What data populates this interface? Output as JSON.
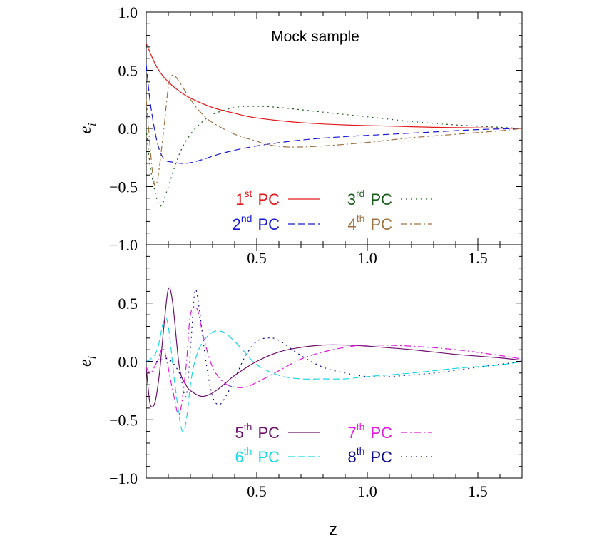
{
  "chart_data": [
    {
      "type": "line",
      "panel": "top",
      "annotation": "Mock sample",
      "xlabel": "",
      "ylabel": "e_i",
      "xlim": [
        0.0,
        1.7
      ],
      "ylim": [
        -1.0,
        1.0
      ],
      "xticks": [
        "0.5",
        "1.0",
        "1.5"
      ],
      "xtick_values": [
        0.5,
        1.0,
        1.5
      ],
      "yticks": [
        "1.0",
        "0.5",
        "0.0",
        "−0.5",
        "−1.0"
      ],
      "ytick_values": [
        1.0,
        0.5,
        0.0,
        -0.5,
        -1.0
      ],
      "legend_position": "lower-right",
      "series": [
        {
          "ordinal": "1",
          "suffix": "st",
          "name": "PC",
          "color": "#e0191c",
          "dash": "solid",
          "x": [
            0.0,
            0.05,
            0.1,
            0.15,
            0.2,
            0.3,
            0.4,
            0.5,
            0.7,
            0.9,
            1.1,
            1.3,
            1.5,
            1.7
          ],
          "y": [
            0.73,
            0.52,
            0.4,
            0.32,
            0.26,
            0.18,
            0.13,
            0.09,
            0.05,
            0.03,
            0.02,
            0.01,
            0.005,
            0.0
          ]
        },
        {
          "ordinal": "2",
          "suffix": "nd",
          "name": "PC",
          "color": "#1717d6",
          "dash": "dashed",
          "x": [
            0.0,
            0.02,
            0.05,
            0.08,
            0.12,
            0.18,
            0.25,
            0.35,
            0.5,
            0.7,
            0.9,
            1.1,
            1.3,
            1.5,
            1.7
          ],
          "y": [
            0.55,
            0.2,
            -0.12,
            -0.26,
            -0.29,
            -0.3,
            -0.27,
            -0.21,
            -0.15,
            -0.1,
            -0.07,
            -0.05,
            -0.03,
            -0.01,
            0.0
          ]
        },
        {
          "ordinal": "3",
          "suffix": "rd",
          "name": "PC",
          "color": "#1b5e1b",
          "dash": "dotted",
          "x": [
            0.0,
            0.02,
            0.05,
            0.07,
            0.1,
            0.15,
            0.2,
            0.25,
            0.3,
            0.4,
            0.5,
            0.6,
            0.8,
            1.0,
            1.2,
            1.4,
            1.6,
            1.7
          ],
          "y": [
            0.0,
            -0.35,
            -0.62,
            -0.66,
            -0.5,
            -0.22,
            -0.05,
            0.05,
            0.12,
            0.18,
            0.19,
            0.18,
            0.14,
            0.1,
            0.06,
            0.03,
            0.01,
            0.0
          ]
        },
        {
          "ordinal": "4",
          "suffix": "th",
          "name": "PC",
          "color": "#a07040",
          "dash": "dashdot",
          "x": [
            0.0,
            0.03,
            0.05,
            0.08,
            0.1,
            0.12,
            0.15,
            0.2,
            0.25,
            0.3,
            0.4,
            0.5,
            0.55,
            0.65,
            0.8,
            1.0,
            1.2,
            1.4,
            1.6,
            1.7
          ],
          "y": [
            0.25,
            -0.4,
            -0.45,
            0.0,
            0.35,
            0.46,
            0.4,
            0.25,
            0.13,
            0.05,
            -0.05,
            -0.11,
            -0.14,
            -0.16,
            -0.15,
            -0.12,
            -0.08,
            -0.05,
            -0.02,
            0.0
          ]
        }
      ]
    },
    {
      "type": "line",
      "panel": "bottom",
      "xlabel": "z",
      "ylabel": "e_i",
      "xlim": [
        0.0,
        1.7
      ],
      "ylim": [
        -1.0,
        1.0
      ],
      "xticks": [
        "0.5",
        "1.0",
        "1.5"
      ],
      "xtick_values": [
        0.5,
        1.0,
        1.5
      ],
      "yticks": [
        "0.5",
        "0.0",
        "−0.5",
        "−1.0"
      ],
      "ytick_values": [
        0.5,
        0.0,
        -0.5,
        -1.0
      ],
      "legend_position": "lower-right",
      "series": [
        {
          "ordinal": "5",
          "suffix": "th",
          "name": "PC",
          "color": "#6e116e",
          "dash": "solid",
          "x": [
            0.0,
            0.01,
            0.02,
            0.04,
            0.06,
            0.08,
            0.1,
            0.12,
            0.15,
            0.18,
            0.2,
            0.25,
            0.3,
            0.35,
            0.4,
            0.5,
            0.6,
            0.7,
            0.8,
            0.9,
            1.0,
            1.2,
            1.4,
            1.6,
            1.7
          ],
          "y": [
            -0.05,
            -0.25,
            -0.38,
            -0.35,
            -0.1,
            0.3,
            0.62,
            0.5,
            -0.05,
            -0.2,
            -0.25,
            -0.3,
            -0.27,
            -0.2,
            -0.12,
            0.0,
            0.08,
            0.12,
            0.14,
            0.14,
            0.13,
            0.1,
            0.06,
            0.03,
            0.01
          ]
        },
        {
          "ordinal": "6",
          "suffix": "th",
          "name": "PC",
          "color": "#1ad8e6",
          "dash": "dashed",
          "x": [
            0.0,
            0.02,
            0.05,
            0.08,
            0.1,
            0.13,
            0.16,
            0.18,
            0.2,
            0.22,
            0.25,
            0.3,
            0.35,
            0.4,
            0.45,
            0.5,
            0.6,
            0.7,
            0.8,
            0.9,
            1.0,
            1.2,
            1.4,
            1.6,
            1.7
          ],
          "y": [
            0.0,
            0.02,
            0.1,
            0.35,
            0.3,
            -0.2,
            -0.58,
            -0.52,
            -0.2,
            0.0,
            0.15,
            0.25,
            0.25,
            0.17,
            0.07,
            -0.03,
            -0.12,
            -0.15,
            -0.15,
            -0.15,
            -0.13,
            -0.1,
            -0.06,
            -0.03,
            0.0
          ]
        },
        {
          "ordinal": "7",
          "suffix": "th",
          "name": "PC",
          "color": "#e21ae0",
          "dash": "dashdot",
          "x": [
            0.0,
            0.02,
            0.05,
            0.08,
            0.12,
            0.15,
            0.18,
            0.2,
            0.23,
            0.26,
            0.3,
            0.35,
            0.4,
            0.45,
            0.5,
            0.6,
            0.7,
            0.8,
            0.9,
            1.0,
            1.2,
            1.4,
            1.6,
            1.7
          ],
          "y": [
            -0.05,
            -0.1,
            0.0,
            0.1,
            -0.25,
            -0.45,
            -0.05,
            0.4,
            0.45,
            0.2,
            -0.05,
            -0.18,
            -0.22,
            -0.22,
            -0.18,
            -0.08,
            0.02,
            0.08,
            0.12,
            0.14,
            0.13,
            0.1,
            0.05,
            0.02
          ]
        },
        {
          "ordinal": "8",
          "suffix": "th",
          "name": "PC",
          "color": "#0d0d8c",
          "dash": "dotted",
          "x": [
            0.0,
            0.05,
            0.1,
            0.15,
            0.18,
            0.2,
            0.22,
            0.24,
            0.27,
            0.3,
            0.33,
            0.36,
            0.4,
            0.45,
            0.5,
            0.55,
            0.6,
            0.7,
            0.8,
            0.9,
            1.0,
            1.1,
            1.3,
            1.5,
            1.7
          ],
          "y": [
            0.0,
            0.0,
            0.02,
            -0.1,
            -0.3,
            0.1,
            0.6,
            0.45,
            0.0,
            -0.3,
            -0.37,
            -0.3,
            -0.15,
            0.05,
            0.17,
            0.2,
            0.18,
            0.05,
            -0.05,
            -0.1,
            -0.13,
            -0.13,
            -0.1,
            -0.05,
            0.0
          ]
        }
      ]
    }
  ]
}
